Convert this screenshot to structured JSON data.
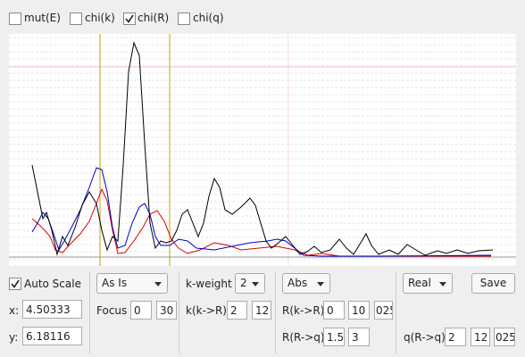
{
  "top_checkboxes": [
    {
      "label": "mut(E)",
      "checked": false
    },
    {
      "label": "chi(k)",
      "checked": false
    },
    {
      "label": "chi(R)",
      "checked": true
    },
    {
      "label": "chi(q)",
      "checked": false
    }
  ],
  "controls": {
    "auto_scale": {
      "label": "Auto Scale",
      "checked": true
    },
    "x": {
      "label": "x:",
      "value": "4.50333"
    },
    "y": {
      "label": "y:",
      "value": "6.18116"
    },
    "transform": "As Is",
    "focus": {
      "label": "Focus",
      "values": [
        "0",
        "30"
      ]
    },
    "k_weight": {
      "label": "k-weight",
      "value": "2"
    },
    "k_to_r": {
      "label": "k(k->R)",
      "values": [
        "2",
        "12"
      ]
    },
    "mode": "Abs",
    "r_k_to_r": {
      "label": "R(k->R)",
      "values": [
        "0",
        "10",
        "025"
      ]
    },
    "r_r_to_q": {
      "label": "R(R->q)",
      "values": [
        "1.5",
        "3"
      ]
    },
    "part": "Real",
    "save": "Save",
    "q_r_to_q": {
      "label": "q(R->q)",
      "values": [
        "2",
        "12",
        "025"
      ]
    }
  }
}
